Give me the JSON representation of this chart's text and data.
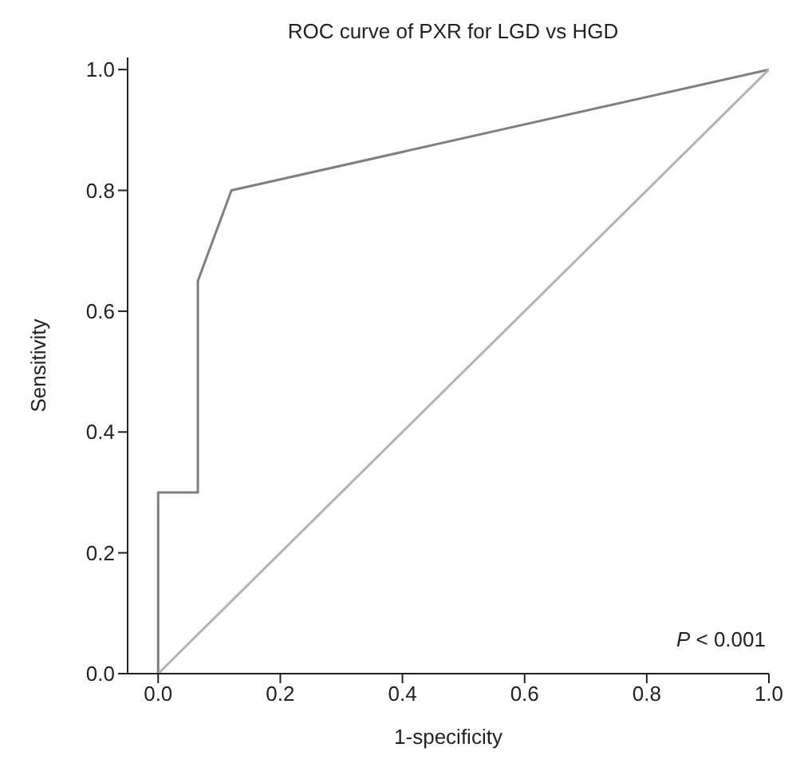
{
  "chart_data": {
    "type": "line",
    "title": "ROC curve of PXR for LGD vs HGD",
    "xlabel": "1-specificity",
    "ylabel": "Sensitivity",
    "series": [
      {
        "color": "#7f7f7f",
        "x": [
          0,
          0,
          0.065,
          0.065,
          0.12,
          1
        ],
        "values": [
          0,
          0.3,
          0.3,
          0.65,
          0.8,
          1
        ]
      },
      {
        "color": "#b3b3b3",
        "x": [
          0,
          1
        ],
        "values": [
          0,
          1
        ]
      }
    ],
    "xlim": [
      -0.05,
      1.0
    ],
    "ylim": [
      0,
      1.02
    ],
    "xticks": [
      {
        "value": 0,
        "label": "0.0"
      },
      {
        "value": 0.2,
        "label": "0.2"
      },
      {
        "value": 0.4,
        "label": "0.4"
      },
      {
        "value": 0.6,
        "label": "0.6"
      },
      {
        "value": 0.8,
        "label": "0.8"
      },
      {
        "value": 1,
        "label": "1.0"
      }
    ],
    "yticks": [
      {
        "value": 0,
        "label": "0.0"
      },
      {
        "value": 0.2,
        "label": "0.2"
      },
      {
        "value": 0.4,
        "label": "0.4"
      },
      {
        "value": 0.6,
        "label": "0.6"
      },
      {
        "value": 0.8,
        "label": "0.8"
      },
      {
        "value": 1,
        "label": "1.0"
      }
    ],
    "annotations": [
      "P < 0.001"
    ],
    "grid": false,
    "marker": "none",
    "line_style": "solid"
  }
}
